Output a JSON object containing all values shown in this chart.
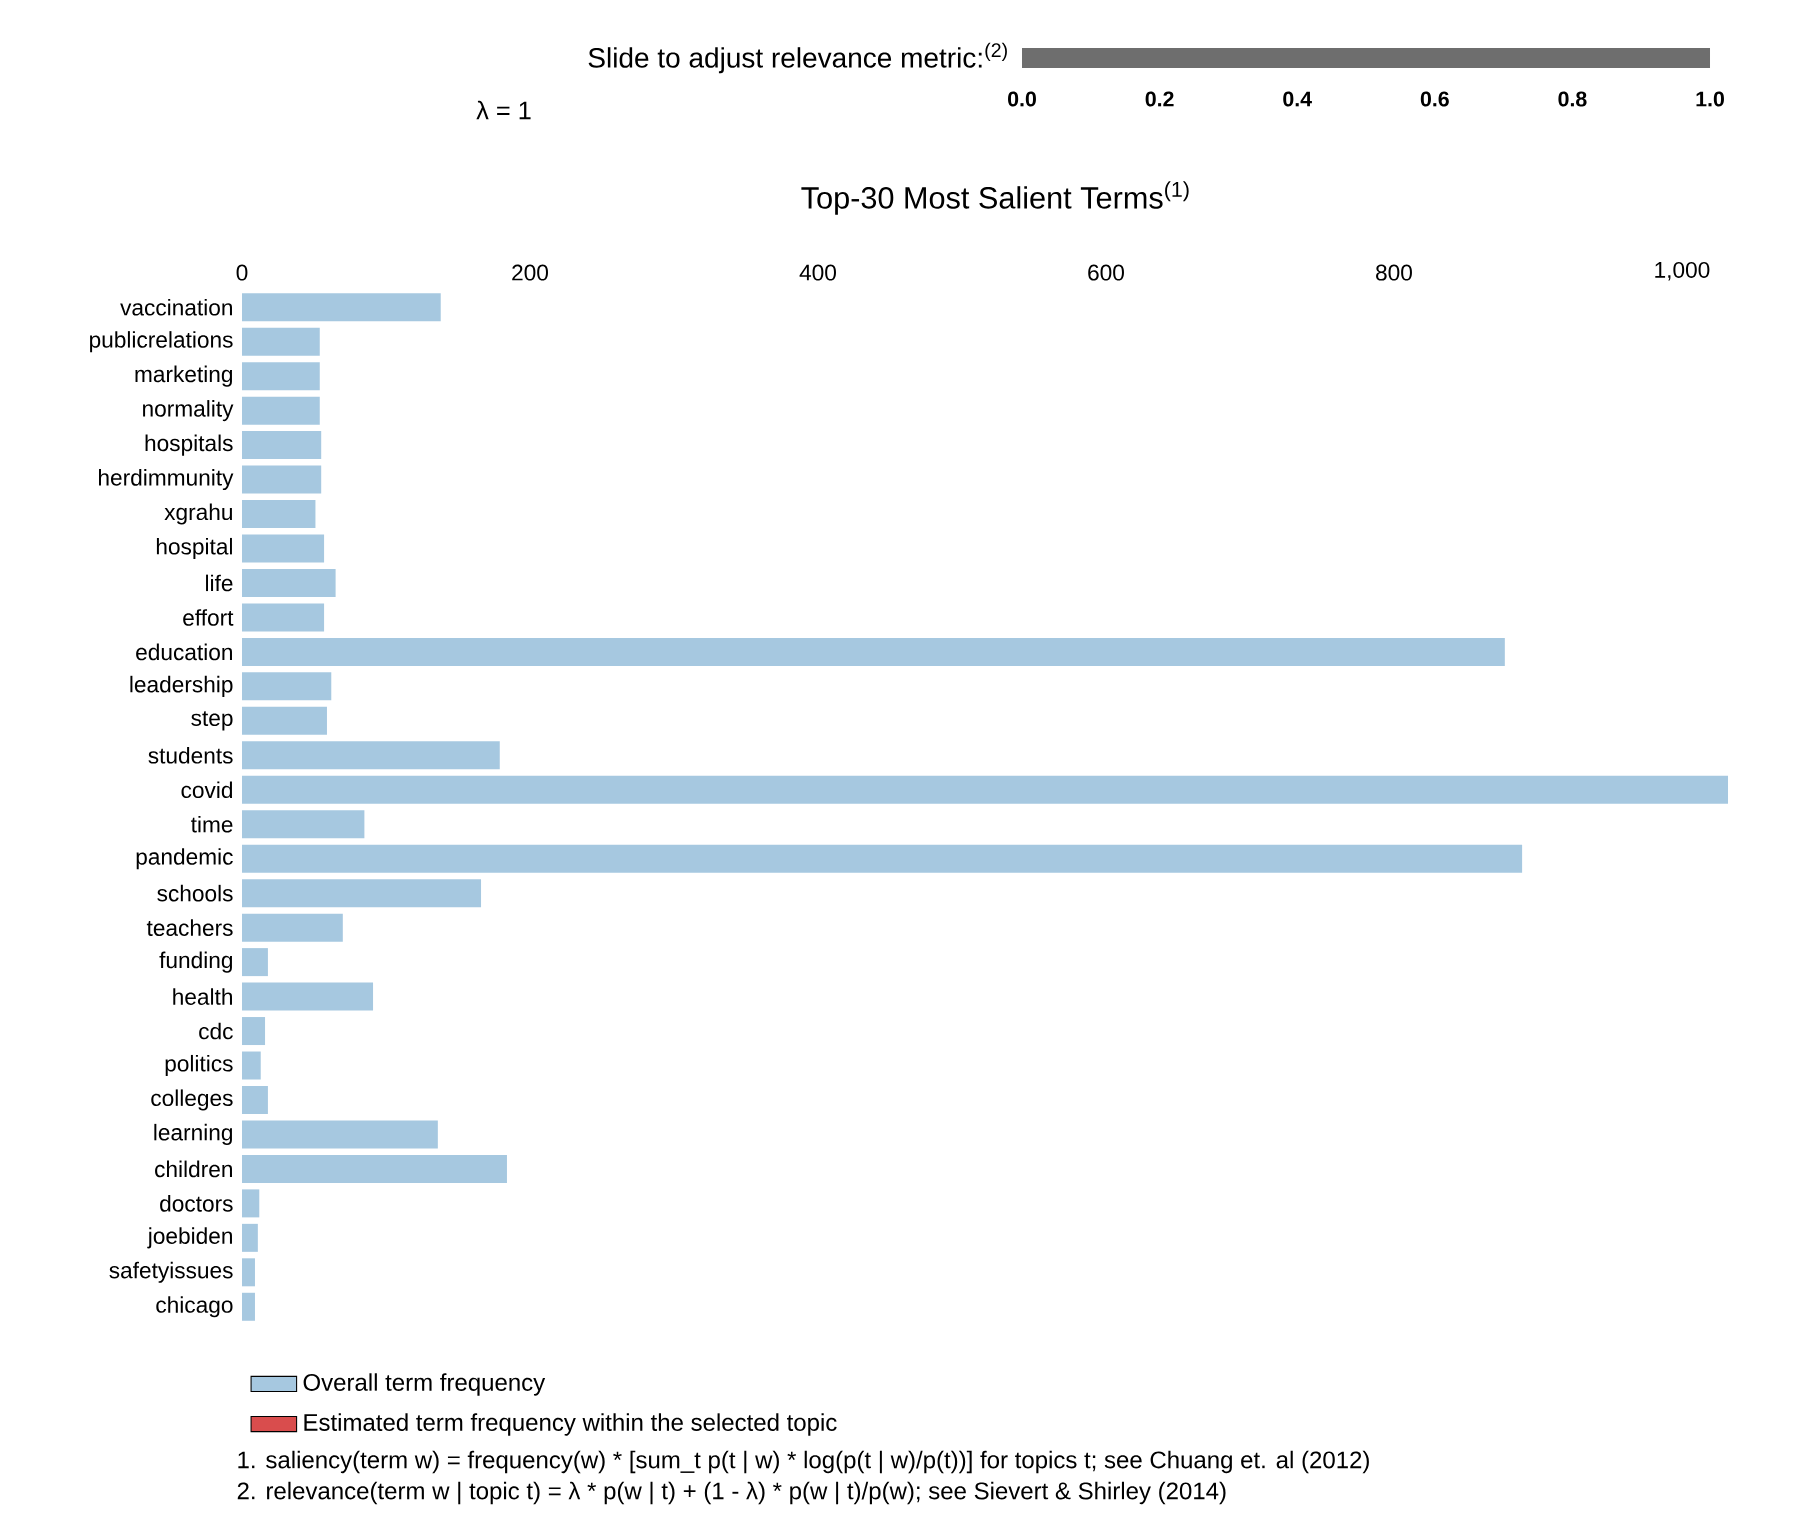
{
  "chart_data": [
    {
      "type": "bar",
      "orientation": "horizontal",
      "annotations": [
        "λ = 1"
      ],
      "categories": [
        "Slide to adjust relevance metric:$^{(2)}$"
      ],
      "values": [
        1
      ],
      "color": "#6e6e6e",
      "xlim": [
        0,
        1
      ],
      "xticks": [
        {
          "value": 0,
          "label": "0.0"
        },
        {
          "value": 0.2,
          "label": "0.2"
        },
        {
          "value": 0.4,
          "label": "0.4"
        },
        {
          "value": 0.6,
          "label": "0.6"
        },
        {
          "value": 0.8,
          "label": "0.8"
        },
        {
          "value": 1,
          "label": "1.0"
        }
      ]
    },
    {
      "type": "bar",
      "orientation": "horizontal",
      "title": "Top-30 Most Salient Terms$^{(1)}$",
      "categories": [
        "vaccination",
        "publicrelations",
        "marketing",
        "normality",
        "hospitals",
        "herdimmunity",
        "xgrahu",
        "hospital",
        "life",
        "effort",
        "education",
        "leadership",
        "step",
        "students",
        "covid",
        "time",
        "pandemic",
        "schools",
        "teachers",
        "funding",
        "health",
        "cdc",
        "politics",
        "colleges",
        "learning",
        "children",
        "doctors",
        "joebiden",
        "safetyissues",
        "chicago"
      ],
      "series": [
        {
          "name": "Overall term frequency",
          "color": "#a6c8e0",
          "values": [
            138,
            54,
            54,
            54,
            55,
            55,
            51,
            57,
            65,
            57,
            877,
            62,
            59,
            179,
            1032,
            85,
            889,
            166,
            70,
            18,
            91,
            16,
            13,
            18,
            136,
            184,
            12,
            11,
            9,
            9
          ]
        },
        {
          "name": "Estimated term frequency within the selected topic",
          "color": "#d94d4d",
          "values": [
            null,
            null,
            null,
            null,
            null,
            null,
            null,
            null,
            null,
            null,
            null,
            null,
            null,
            null,
            null,
            null,
            null,
            null,
            null,
            null,
            null,
            null,
            null,
            null,
            null,
            null,
            null,
            null,
            null,
            null
          ]
        }
      ],
      "xlim": [
        0,
        1032
      ],
      "xticks": [
        0,
        200,
        400,
        600,
        800,
        {
          "value": 1000,
          "label": "1,000"
        }
      ],
      "legend": "bottom",
      "annotations": [
        "1. saliency(term w) = frequency(w) * [sum_t p(t | w) * log(p(t | w)/p(t))] for topics t; see Chuang et. al (2012)",
        "2. relevance(term w | topic t) = λ * p(w | t) + (1 - λ) * p(w | t)/p(w); see Sievert & Shirley (2014)"
      ]
    }
  ]
}
